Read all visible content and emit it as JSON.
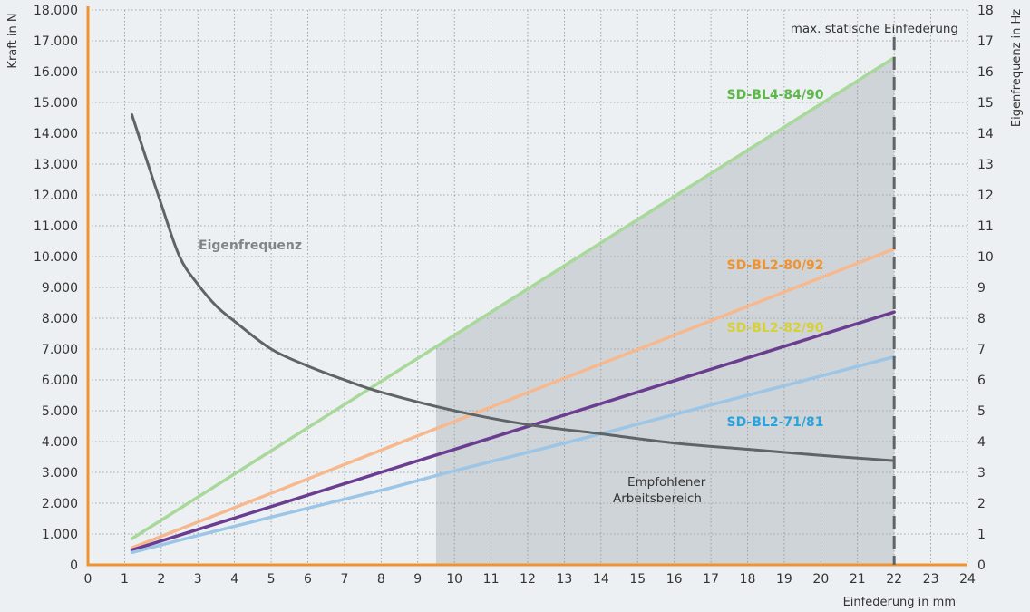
{
  "chart_data": {
    "type": "line",
    "title": "",
    "xlabel": "Einfederung in mm",
    "ylabel": "Kraft in N",
    "y2label": "Eigenfrequenz in Hz",
    "xlim": [
      0,
      24
    ],
    "ylim": [
      0,
      18000
    ],
    "y2lim": [
      0,
      18
    ],
    "x_ticks": [
      "0",
      "1",
      "2",
      "3",
      "4",
      "5",
      "6",
      "7",
      "8",
      "9",
      "10",
      "11",
      "12",
      "13",
      "14",
      "15",
      "16",
      "17",
      "18",
      "19",
      "20",
      "21",
      "22",
      "23",
      "24"
    ],
    "y_ticks": [
      "0",
      "1.000",
      "2.000",
      "3.000",
      "4.000",
      "5.000",
      "6.000",
      "7.000",
      "8.000",
      "9.000",
      "10.000",
      "11.000",
      "12.000",
      "13.000",
      "14.000",
      "15.000",
      "16.000",
      "17.000",
      "18.000"
    ],
    "y2_ticks": [
      "0",
      "1",
      "2",
      "3",
      "4",
      "5",
      "6",
      "7",
      "8",
      "9",
      "10",
      "11",
      "12",
      "13",
      "14",
      "15",
      "16",
      "17",
      "18"
    ],
    "grid": true,
    "recommended_range": {
      "x_start": 9.5,
      "x_end": 22,
      "label_line1": "Empfohlener",
      "label_line2": "Arbeitsbereich"
    },
    "max_deflection": {
      "x": 22,
      "label": "max. statische Einfederung"
    },
    "series": [
      {
        "name": "SD-BL4-84/90",
        "color": "#a9d89b",
        "label_color": "#5cb848",
        "x": [
          1.2,
          22
        ],
        "values": [
          850,
          16450
        ]
      },
      {
        "name": "SD-BL2-80/92",
        "color": "#f6b98f",
        "label_color": "#f0922e",
        "x": [
          1.2,
          22
        ],
        "values": [
          550,
          10250
        ]
      },
      {
        "name": "SD-BL2-82/90",
        "color": "#6a3d91",
        "label_color": "#d7d03a",
        "x": [
          1.2,
          22
        ],
        "values": [
          480,
          8200
        ]
      },
      {
        "name": "SD-BL2-71/81",
        "color": "#9dc6e6",
        "label_color": "#29a3dc",
        "x": [
          1.2,
          3,
          5,
          8,
          10,
          14,
          18,
          22
        ],
        "values": [
          400,
          950,
          1550,
          2420,
          3050,
          4250,
          5500,
          6750
        ]
      },
      {
        "name": "Eigenfrequenz",
        "color": "#5f6466",
        "label_color": "#808587",
        "axis": "right",
        "x": [
          1.2,
          1.5,
          2,
          2.5,
          3,
          3.5,
          4,
          5,
          6,
          7,
          8,
          10,
          12,
          14,
          16,
          18,
          20,
          22
        ],
        "values": [
          14.6,
          13.5,
          11.7,
          10.0,
          9.1,
          8.4,
          7.9,
          7.0,
          6.45,
          6.0,
          5.6,
          5.0,
          4.55,
          4.25,
          3.95,
          3.75,
          3.55,
          3.38
        ]
      }
    ]
  }
}
